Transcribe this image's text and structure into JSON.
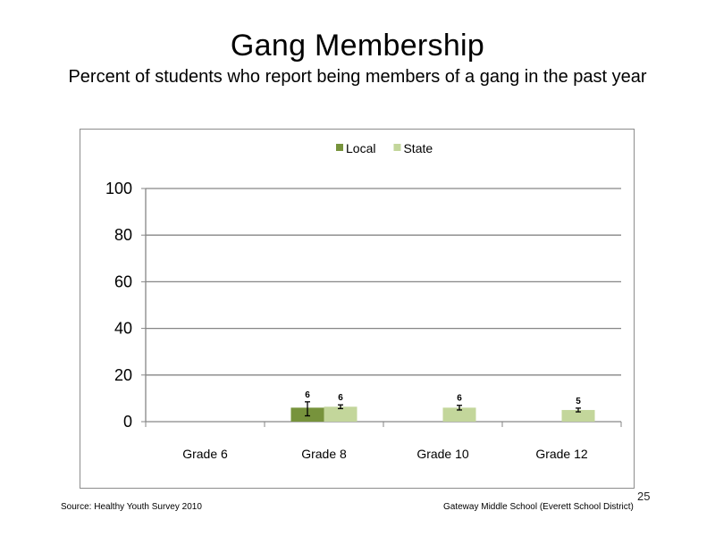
{
  "slide": {
    "title": "Gang Membership",
    "subtitle": "Percent of students who report being members of a gang in the past year",
    "source": "Source: Healthy Youth Survey 2010",
    "school": "Gateway Middle School (Everett School District)",
    "page_number": "25"
  },
  "chart_data": {
    "type": "bar",
    "title": "",
    "xlabel": "",
    "ylabel": "",
    "categories": [
      "Grade 6",
      "Grade 8",
      "Grade 10",
      "Grade 12"
    ],
    "ylim": [
      0,
      100
    ],
    "yticks": [
      0,
      20,
      40,
      60,
      80,
      100
    ],
    "grid": true,
    "legend_position": "top",
    "series": [
      {
        "name": "Local",
        "color": "#77933c",
        "values": [
          null,
          6,
          null,
          null
        ],
        "labels": [
          "",
          "6",
          "",
          ""
        ],
        "error_low": [
          null,
          2.5,
          null,
          null
        ],
        "error_high": [
          null,
          8.5,
          null,
          null
        ]
      },
      {
        "name": "State",
        "color": "#c3d69b",
        "values": [
          null,
          6.4,
          6,
          5
        ],
        "labels": [
          "",
          "6",
          "6",
          "5"
        ],
        "error_low": [
          null,
          5.6,
          5,
          4.2
        ],
        "error_high": [
          null,
          7.2,
          7,
          5.8
        ]
      }
    ]
  }
}
